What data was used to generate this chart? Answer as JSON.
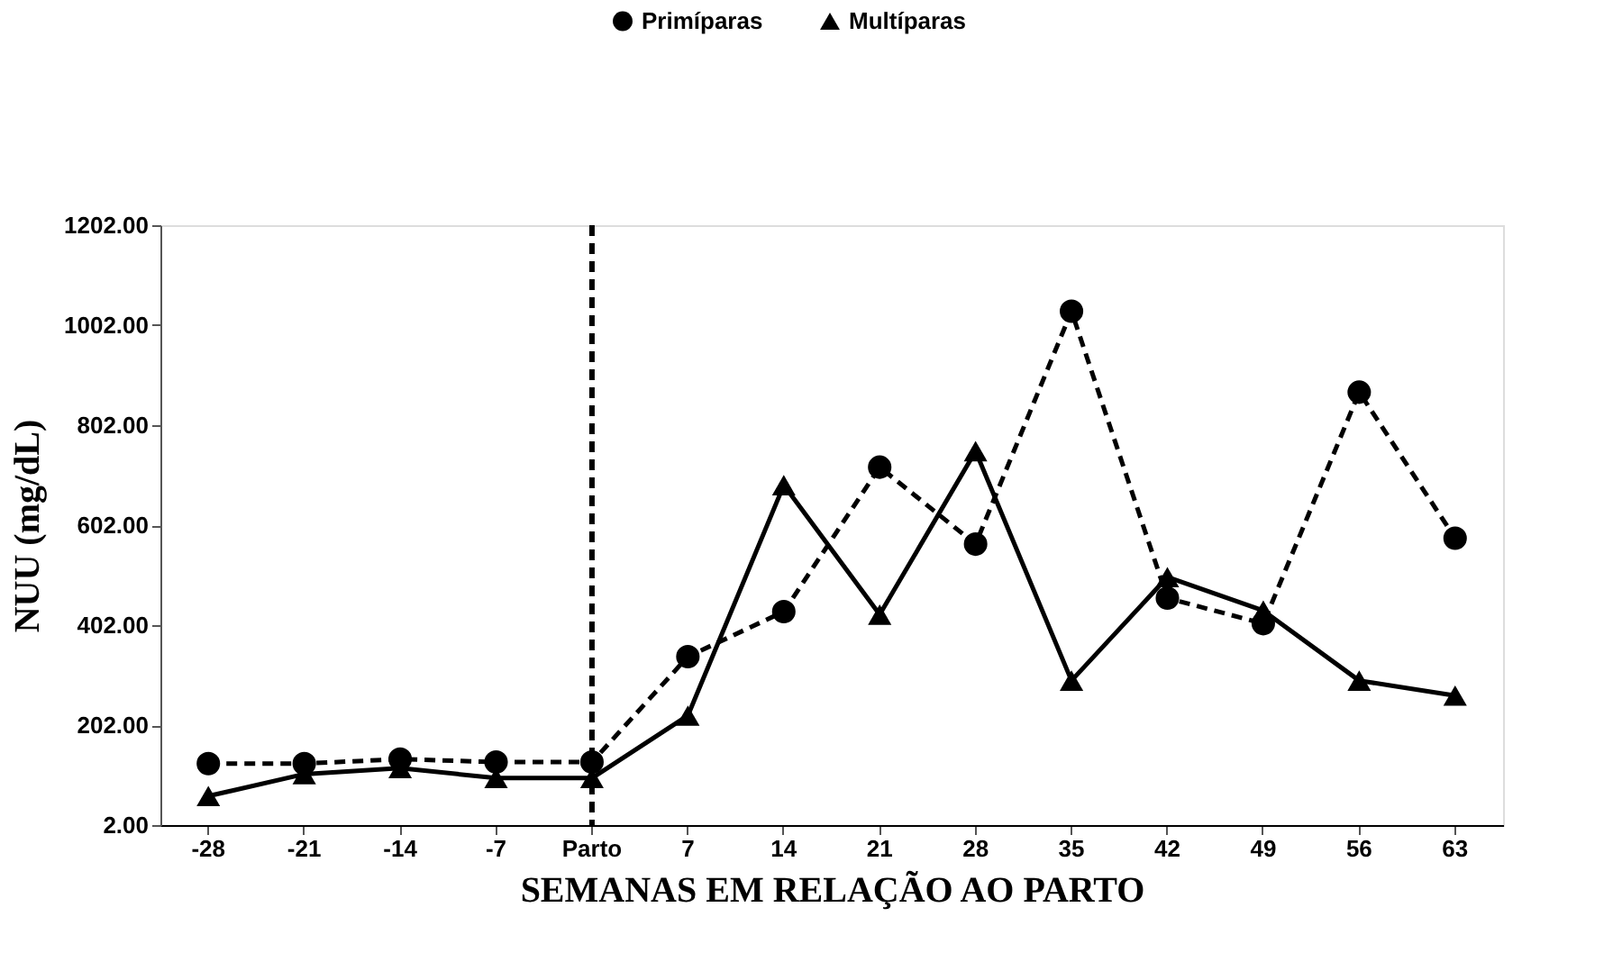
{
  "chart_data": {
    "type": "line",
    "xlabel": "SEMANAS EM RELAÇÃO AO PARTO",
    "ylabel": "NUU (mg/dL)",
    "categories": [
      "-28",
      "-21",
      "-14",
      "-7",
      "Parto",
      "7",
      "14",
      "21",
      "28",
      "35",
      "42",
      "49",
      "56",
      "63"
    ],
    "series": [
      {
        "name": "Primíparas",
        "color": "#000000",
        "marker": "circle",
        "line_style": "dashed",
        "values": [
          125,
          125,
          134,
          128,
          128,
          339,
          429,
          718,
          564,
          1030,
          456,
          405,
          868,
          576
        ]
      },
      {
        "name": "Multíparas",
        "color": "#000000",
        "marker": "triangle",
        "line_style": "solid",
        "values": [
          60,
          104,
          116,
          96,
          96,
          221,
          682,
          423,
          750,
          291,
          498,
          431,
          291,
          261
        ]
      }
    ],
    "ylim": [
      2,
      1202
    ],
    "yticks": [
      {
        "value": 2,
        "label": "2.00"
      },
      {
        "value": 202,
        "label": "202.00"
      },
      {
        "value": 402,
        "label": "402.00"
      },
      {
        "value": 602,
        "label": "602.00"
      },
      {
        "value": 802,
        "label": "802.00"
      },
      {
        "value": 1002,
        "label": "1002.00"
      },
      {
        "value": 1202,
        "label": "1202.00"
      }
    ],
    "ref_lines": [
      {
        "axis": "x",
        "value": "Parto",
        "color": "#000000",
        "line_style": "dashed"
      }
    ],
    "grid": false,
    "legend": "top"
  }
}
